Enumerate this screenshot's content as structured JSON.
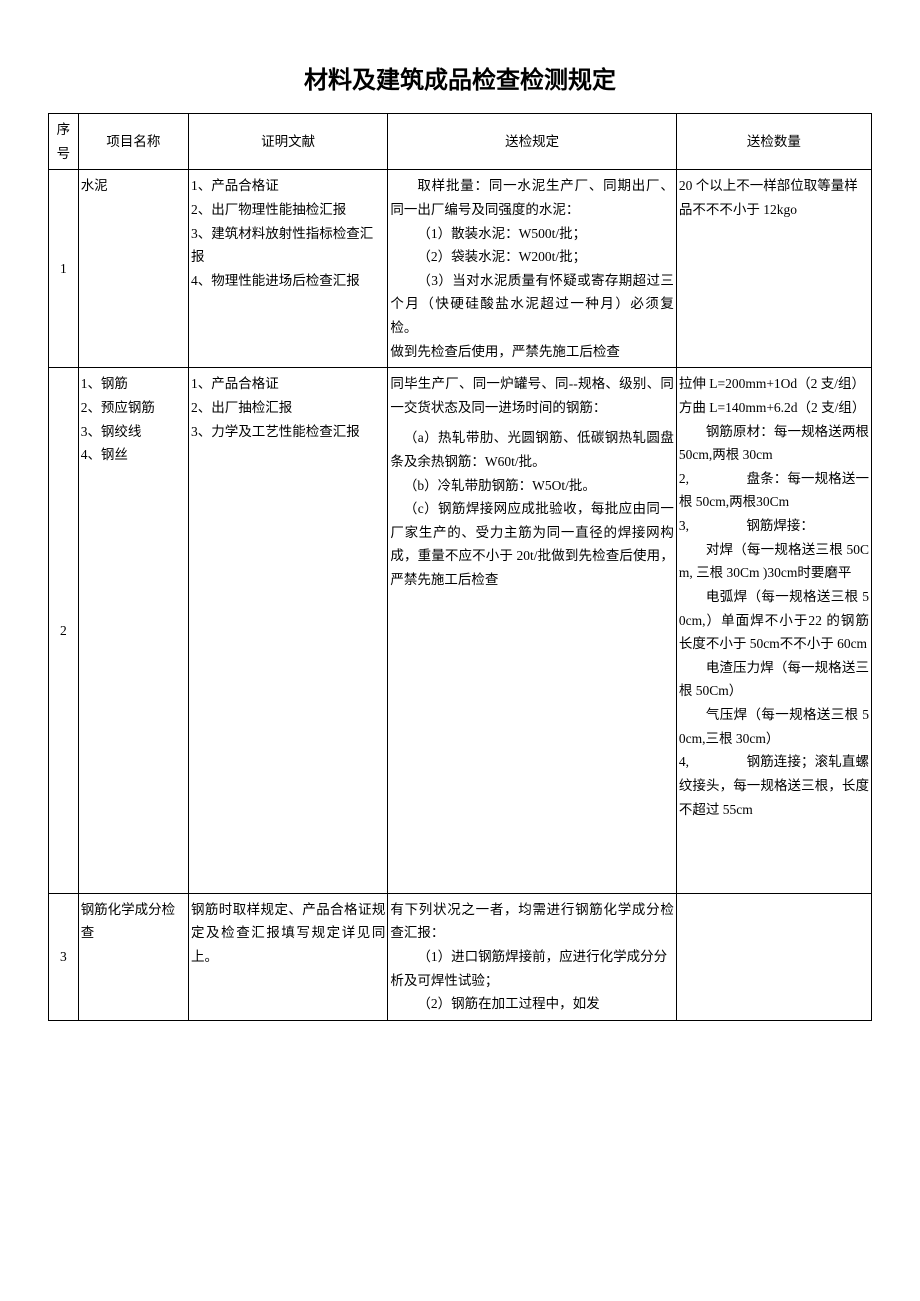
{
  "title": "材料及建筑成品检查检测规定",
  "columns": {
    "seq": "序号",
    "name": "项目名称",
    "doc": "证明文献",
    "rule": "送检规定",
    "qty": "送检数量"
  },
  "rows": [
    {
      "seq": "1",
      "name": "水泥",
      "doc_lines": [
        "1、产品合格证",
        "2、出厂物理性能抽检汇报",
        "3、建筑材料放射性指标检查汇报",
        "4、物理性能进场后检查汇报"
      ],
      "rule_p1": "取样批量：同一水泥生产厂、同期出厂、同一出厂编号及同强度的水泥：",
      "rule_l1": "（1）散装水泥：W500t/批；",
      "rule_l2": "（2）袋装水泥：W200t/批；",
      "rule_l3": "（3）当对水泥质量有怀疑或寄存期超过三个月（快硬硅酸盐水泥超过一种月）必须复检。",
      "rule_l4": "做到先检查后使用，严禁先施工后检查",
      "qty": "20 个以上不一样部位取等量样品不不不小于 12kgo"
    },
    {
      "seq": "2",
      "name_lines": [
        "1、钢筋",
        "2、预应钢筋",
        "3、钢绞线",
        "4、钢丝"
      ],
      "doc_lines": [
        "1、产品合格证",
        "2、出厂抽检汇报",
        "3、力学及工艺性能检查汇报"
      ],
      "rule_p1": "同毕生产厂、同一炉罐号、同--规格、级别、同一交货状态及同一进场时间的钢筋：",
      "rule_la": "（a）热轧带肋、光圆钢筋、低碳钢热轧圆盘条及余热钢筋：W60t/批。",
      "rule_lb": "（b）冷轧带肋钢筋：W5Ot/批。",
      "rule_lc": "（c）钢筋焊接网应成批验收，每批应由同一厂家生产的、受力主筋为同一直径的焊接网构成，重量不应不小于 20t/批做到先检查后使用，严禁先施工后检查",
      "qty_l1": "拉伸 L=200mm+1Od（2 支/组）",
      "qty_l2": "方曲 L=140mm+6.2d（2 支/组）",
      "qty_l3a": "钢筋原材：每一规格送两根 50cm,两根 30cm",
      "qty_l3_num": "2,",
      "qty_l3b": "盘条：每一规格送一根 50cm,两根30Cm",
      "qty_l4_num": "3,",
      "qty_l4a": "钢筋焊接：",
      "qty_l4b": "对焊（每一规格送三根 50Cm, 三根 30Cm )30cm时要磨平",
      "qty_l4c": "电弧焊（每一规格送三根 50cm,）单面焊不小于22 的钢筋长度不小于 50cm不不小于 60cm",
      "qty_l4d": "电渣压力焊（每一规格送三根 50Cm）",
      "qty_l4e": "气压焊（每一规格送三根 50cm,三根 30cm）",
      "qty_l5_num": "4,",
      "qty_l5a": "钢筋连接；滚轧直螺纹接头，每一规格送三根，长度不超过 55cm"
    },
    {
      "seq": "3",
      "name": "钢筋化学成分检查",
      "doc": "钢筋时取样规定、产品合格证规定及检查汇报填写规定详见同上。",
      "rule_p1": "有下列状况之一者，均需进行钢筋化学成分检查汇报：",
      "rule_l1": "（1）进口钢筋焊接前，应进行化学成分分析及可焊性试验；",
      "rule_l2": "（2）钢筋在加工过程中，如发",
      "qty": ""
    }
  ]
}
